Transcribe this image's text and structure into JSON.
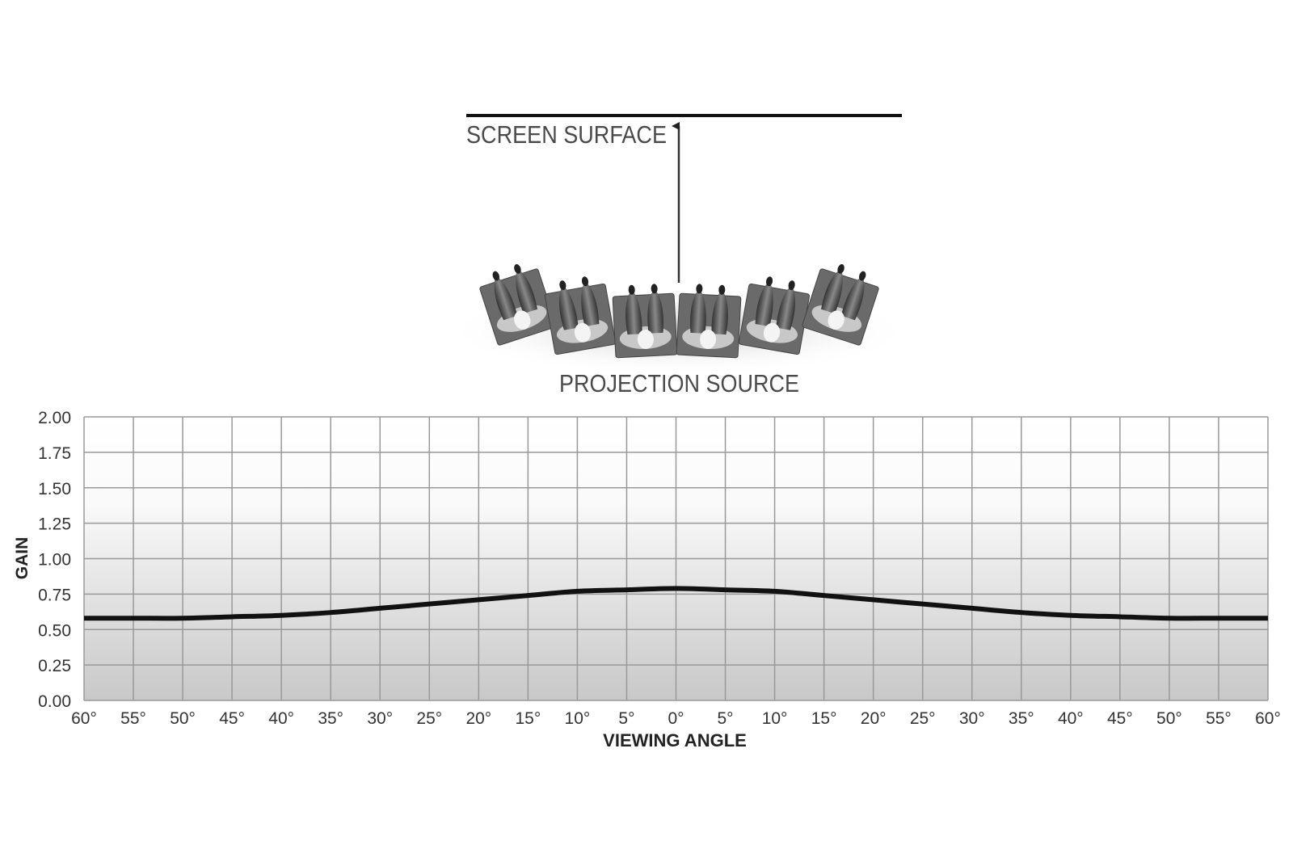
{
  "diagram": {
    "screen_label": "SCREEN SURFACE",
    "source_label": "PROJECTION SOURCE",
    "seat_count": 6
  },
  "chart_data": {
    "type": "line",
    "title": "",
    "xlabel": "VIEWING ANGLE",
    "ylabel": "GAIN",
    "x": [
      -60,
      -55,
      -50,
      -45,
      -40,
      -35,
      -30,
      -25,
      -20,
      -15,
      -10,
      -5,
      0,
      5,
      10,
      15,
      20,
      25,
      30,
      35,
      40,
      45,
      50,
      55,
      60
    ],
    "series": [
      {
        "values": [
          0.58,
          0.58,
          0.58,
          0.59,
          0.6,
          0.62,
          0.65,
          0.68,
          0.71,
          0.74,
          0.77,
          0.78,
          0.79,
          0.78,
          0.77,
          0.74,
          0.71,
          0.68,
          0.65,
          0.62,
          0.6,
          0.59,
          0.58,
          0.58,
          0.58
        ],
        "color": "#111111"
      }
    ],
    "xlim": [
      -60,
      60
    ],
    "ylim": [
      0,
      2
    ],
    "xticks": [
      "60°",
      "55°",
      "50°",
      "45°",
      "40°",
      "35°",
      "30°",
      "25°",
      "20°",
      "15°",
      "10°",
      "5°",
      "0°",
      "5°",
      "10°",
      "15°",
      "20°",
      "25°",
      "30°",
      "35°",
      "40°",
      "45°",
      "50°",
      "55°",
      "60°"
    ],
    "yticks": [
      "0.00",
      "0.25",
      "0.50",
      "0.75",
      "1.00",
      "1.25",
      "1.50",
      "1.75",
      "2.00"
    ],
    "grid": true,
    "background": "gradient white to light gray"
  }
}
